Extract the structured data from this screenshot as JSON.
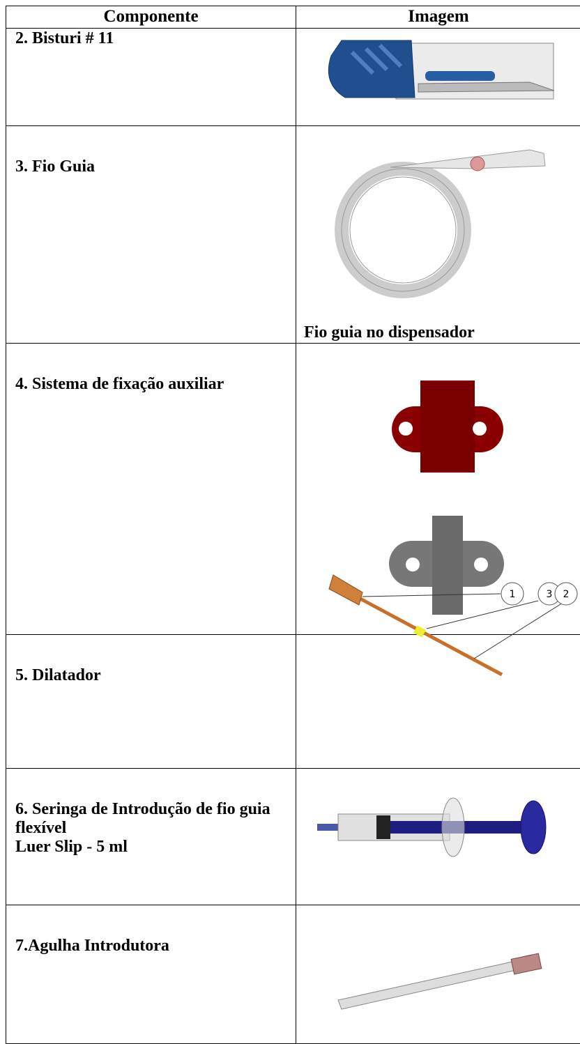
{
  "table": {
    "header": [
      "Componente",
      "Imagem"
    ],
    "rows": [
      {
        "component": [
          "2. Bisturi # 11"
        ]
      },
      {
        "component": [
          "3. Fio Guia"
        ],
        "caption": "Fio guia no dispensador"
      },
      {
        "component": [
          "4. Sistema de fixação auxiliar"
        ]
      },
      {
        "component": [
          "5. Dilatador"
        ],
        "callouts": [
          "1",
          "3",
          "2"
        ]
      },
      {
        "component": [
          "6. Seringa de Introdução de fio guia flexível",
          "Luer Slip - 5 ml"
        ]
      },
      {
        "component": [
          "7.Agulha Introdutora"
        ]
      }
    ]
  }
}
